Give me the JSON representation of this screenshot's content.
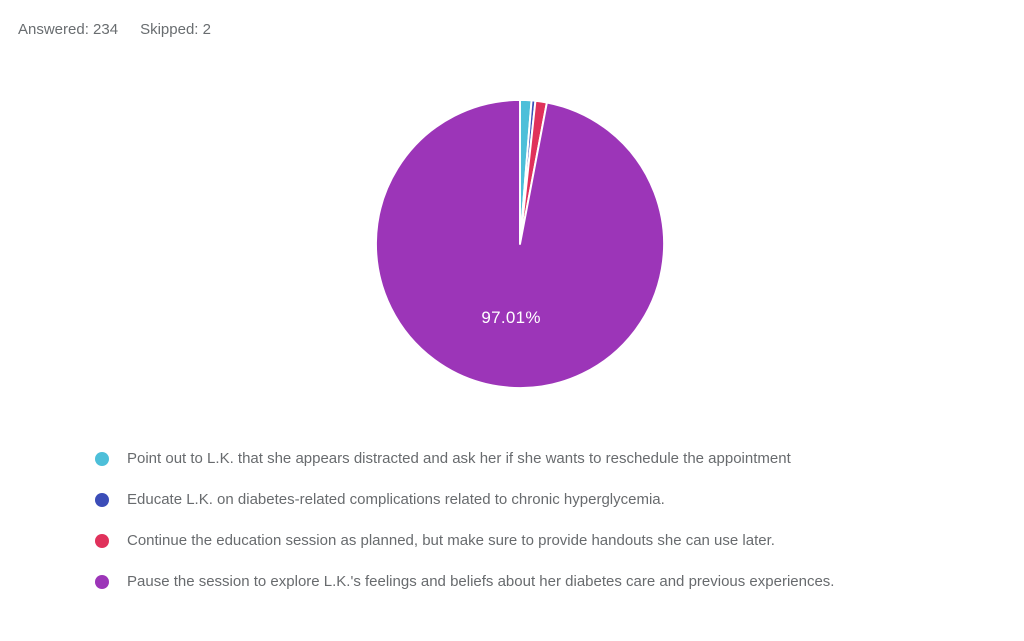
{
  "header": {
    "answered": "Answered: 234",
    "skipped": "Skipped: 2"
  },
  "chart_data": {
    "type": "pie",
    "title": "",
    "start_angle_deg": -90,
    "direction": "clockwise",
    "legend_position": "bottom",
    "data_label": "97.01%",
    "slices": [
      {
        "label": "Point out to L.K. that she appears distracted and ask her if she wants to reschedule the appointment",
        "value": 1.28,
        "color": "#4dbfd9"
      },
      {
        "label": "Educate L.K. on diabetes-related complications related to chronic hyperglycemia.",
        "value": 0.43,
        "color": "#3b4db8"
      },
      {
        "label": "Continue the education session as planned, but make sure to provide handouts she can use later.",
        "value": 1.28,
        "color": "#e0315b"
      },
      {
        "label": "Pause the session to explore L.K.'s feelings and beliefs about her diabetes care and previous experiences.",
        "value": 97.01,
        "color": "#9c35b8"
      }
    ]
  }
}
